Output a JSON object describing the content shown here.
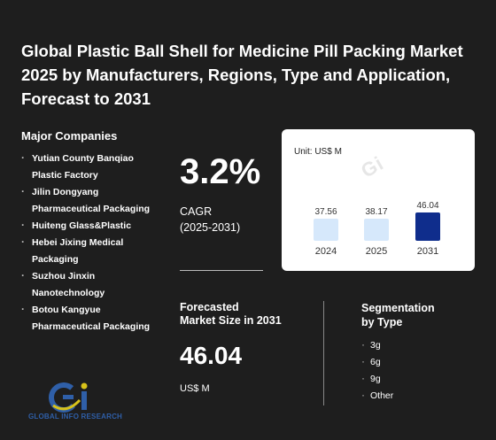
{
  "title": "Global Plastic Ball Shell for Medicine Pill Packing Market 2025 by Manufacturers, Regions, Type and Application, Forecast to 2031",
  "companies": {
    "heading": "Major Companies",
    "items": [
      "Yutian County Banqiao Plastic Factory",
      "Jilin Dongyang Pharmaceutical Packaging",
      "Huiteng Glass&Plastic",
      "Hebei Jixing Medical Packaging",
      "Suzhou Jinxin Nanotechnology",
      "Botou Kangyue Pharmaceutical Packaging"
    ]
  },
  "cagr": {
    "value": "3.2%",
    "label_line1": "CAGR",
    "label_line2": "(2025-2031)"
  },
  "forecast": {
    "label_line1": "Forecasted",
    "label_line2": "Market Size in 2031",
    "value": "46.04",
    "unit": "US$ M"
  },
  "segmentation": {
    "heading_line1": "Segmentation",
    "heading_line2": "by Type",
    "items": [
      "3g",
      "6g",
      "9g",
      "Other"
    ]
  },
  "logo": {
    "text": "GLOBAL INFO RESEARCH",
    "watermark": "Gi"
  },
  "colors": {
    "background": "#1e1e1e",
    "bar_light": "#d6e8fb",
    "bar_highlight": "#0f2d8c",
    "logo_blue": "#2f5fa8",
    "logo_yellow": "#d8c21a"
  },
  "chart_data": {
    "type": "bar",
    "unit_label": "Unit: US$ M",
    "categories": [
      "2024",
      "2025",
      "2031"
    ],
    "values": [
      37.56,
      38.17,
      46.04
    ],
    "value_labels": [
      "37.56",
      "38.17",
      "46.04"
    ],
    "highlight_index": 2,
    "ylim": [
      0,
      50
    ]
  }
}
